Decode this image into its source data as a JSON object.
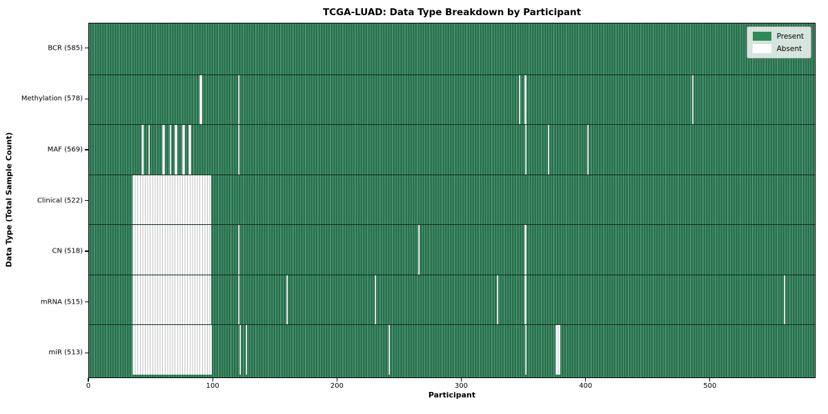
{
  "title": "TCGA-LUAD: Data Type Breakdown by Participant",
  "x_axis": {
    "label": "Participant",
    "ticks": [
      0,
      100,
      200,
      300,
      400,
      500
    ]
  },
  "y_axis": {
    "label": "Data Type (Total Sample Count)"
  },
  "legend": {
    "items": [
      {
        "label": "Present",
        "color": "#2e8b57"
      },
      {
        "label": "Absent",
        "color": "#ffffff"
      }
    ]
  },
  "chart_data": {
    "type": "heatmap",
    "title": "TCGA-LUAD: Data Type Breakdown by Participant",
    "xlabel": "Participant",
    "ylabel": "Data Type (Total Sample Count)",
    "xlim": [
      0,
      585
    ],
    "n_participants": 585,
    "grid": false,
    "legend_position": "upper right",
    "colors": {
      "present": "#2e8b57",
      "absent": "#ffffff"
    },
    "rows": [
      {
        "label": "BCR (585)",
        "data_type": "BCR",
        "present_count": 585,
        "absent_ranges": []
      },
      {
        "label": "Methylation (578)",
        "data_type": "Methylation",
        "present_count": 578,
        "absent_ranges": [
          [
            89,
            90
          ],
          [
            120,
            120
          ],
          [
            346,
            346
          ],
          [
            350,
            351
          ],
          [
            485,
            485
          ]
        ]
      },
      {
        "label": "MAF (569)",
        "data_type": "MAF",
        "present_count": 569,
        "absent_ranges": [
          [
            42,
            43
          ],
          [
            48,
            48
          ],
          [
            59,
            60
          ],
          [
            65,
            65
          ],
          [
            69,
            70
          ],
          [
            75,
            76
          ],
          [
            80,
            81
          ],
          [
            120,
            120
          ],
          [
            351,
            351
          ],
          [
            369,
            369
          ],
          [
            401,
            401
          ]
        ]
      },
      {
        "label": "Clinical (522)",
        "data_type": "Clinical",
        "present_count": 522,
        "absent_ranges": [
          [
            35,
            97
          ]
        ]
      },
      {
        "label": "CN (518)",
        "data_type": "CN",
        "present_count": 518,
        "absent_ranges": [
          [
            35,
            97
          ],
          [
            120,
            120
          ],
          [
            265,
            265
          ],
          [
            350,
            351
          ]
        ]
      },
      {
        "label": "mRNA (515)",
        "data_type": "mRNA",
        "present_count": 515,
        "absent_ranges": [
          [
            35,
            97
          ],
          [
            120,
            120
          ],
          [
            159,
            159
          ],
          [
            230,
            230
          ],
          [
            328,
            328
          ],
          [
            350,
            351
          ],
          [
            559,
            559
          ]
        ]
      },
      {
        "label": "miR (513)",
        "data_type": "miR",
        "present_count": 513,
        "absent_ranges": [
          [
            35,
            98
          ],
          [
            121,
            121
          ],
          [
            126,
            126
          ],
          [
            241,
            241
          ],
          [
            351,
            351
          ],
          [
            375,
            378
          ]
        ]
      }
    ]
  }
}
